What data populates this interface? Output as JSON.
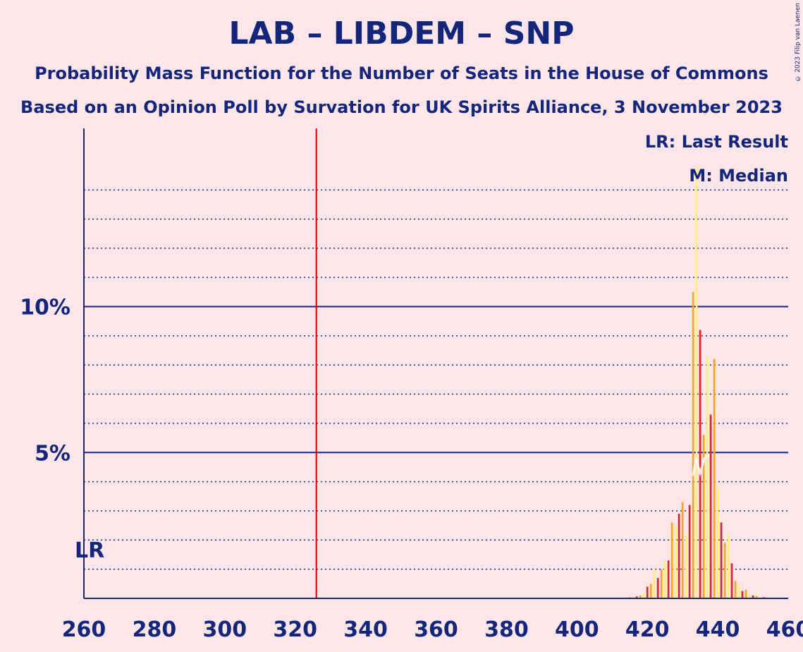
{
  "title": "LAB – LIBDEM – SNP",
  "subtitle1": "Probability Mass Function for the Number of Seats in the House of Commons",
  "subtitle2": "Based on an Opinion Poll by Survation for UK Spirits Alliance, 3 November 2023",
  "copyright": "© 2023 Filip van Laenen",
  "legend": {
    "lr": "LR: Last Result",
    "median": "M: Median"
  },
  "lr_label": "LR",
  "colors": {
    "background": "#FDE6EA",
    "text": "#14267A",
    "majority_line": "#CC0000",
    "bar_lab": "#D42830",
    "bar_libdem": "#F5A623",
    "bar_snp": "#FFF07A"
  },
  "chart_data": {
    "type": "bar",
    "xlim": [
      260,
      460
    ],
    "ylim": [
      0,
      16
    ],
    "x_ticks": [
      260,
      280,
      300,
      320,
      340,
      360,
      380,
      400,
      420,
      440,
      460
    ],
    "y_ticks": [
      {
        "value": 5,
        "label": "5%"
      },
      {
        "value": 10,
        "label": "10%"
      }
    ],
    "majority_line": 326,
    "last_result": 260,
    "median": 435,
    "grid": "dotted every 1%, solid at 5% and 10%",
    "legend_position": "top-right",
    "series_colors_cycle": [
      "#D42830",
      "#F5A623",
      "#FFF07A"
    ],
    "bars": [
      {
        "x": 415,
        "v": 0.04
      },
      {
        "x": 416,
        "v": 0.05
      },
      {
        "x": 417,
        "v": 0.07
      },
      {
        "x": 418,
        "v": 0.1
      },
      {
        "x": 419,
        "v": 0.15
      },
      {
        "x": 420,
        "v": 0.4
      },
      {
        "x": 421,
        "v": 0.5
      },
      {
        "x": 422,
        "v": 1.0
      },
      {
        "x": 423,
        "v": 0.7
      },
      {
        "x": 424,
        "v": 1.0
      },
      {
        "x": 425,
        "v": 1.3
      },
      {
        "x": 426,
        "v": 1.3
      },
      {
        "x": 427,
        "v": 2.6
      },
      {
        "x": 428,
        "v": 2.5
      },
      {
        "x": 429,
        "v": 2.9
      },
      {
        "x": 430,
        "v": 3.3
      },
      {
        "x": 431,
        "v": 2.2
      },
      {
        "x": 432,
        "v": 3.2
      },
      {
        "x": 433,
        "v": 10.5
      },
      {
        "x": 434,
        "v": 14.8
      },
      {
        "x": 435,
        "v": 9.2
      },
      {
        "x": 436,
        "v": 5.6
      },
      {
        "x": 437,
        "v": 8.3
      },
      {
        "x": 438,
        "v": 6.3
      },
      {
        "x": 439,
        "v": 8.2
      },
      {
        "x": 440,
        "v": 3.8
      },
      {
        "x": 441,
        "v": 2.6
      },
      {
        "x": 442,
        "v": 1.9
      },
      {
        "x": 443,
        "v": 2.2
      },
      {
        "x": 444,
        "v": 1.2
      },
      {
        "x": 445,
        "v": 0.6
      },
      {
        "x": 446,
        "v": 0.5
      },
      {
        "x": 447,
        "v": 0.25
      },
      {
        "x": 448,
        "v": 0.3
      },
      {
        "x": 449,
        "v": 0.15
      },
      {
        "x": 450,
        "v": 0.1
      },
      {
        "x": 451,
        "v": 0.08
      },
      {
        "x": 452,
        "v": 0.05
      },
      {
        "x": 453,
        "v": 0.04
      },
      {
        "x": 454,
        "v": 0.03
      }
    ]
  }
}
